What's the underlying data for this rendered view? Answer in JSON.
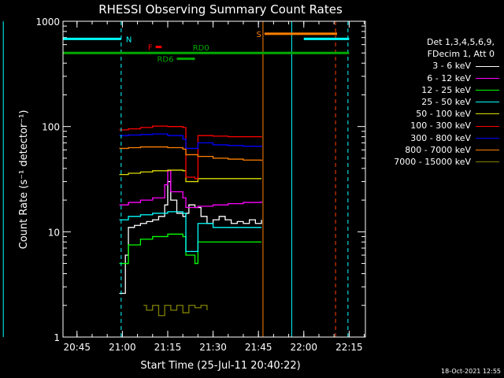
{
  "chart_data": {
    "type": "line",
    "title": "RHESSI Observing Summary Count Rates",
    "xlabel": "Start Time (25-Jul-11 20:40:22)",
    "ylabel": "Count Rate (s⁻¹ detector⁻¹)",
    "yscale": "log",
    "ylim": [
      1,
      1000
    ],
    "xlim_minutes": [
      20.67,
      20.63,
      22.33
    ],
    "x_ticks": [
      "20:45",
      "21:00",
      "21:15",
      "21:30",
      "21:45",
      "22:00",
      "22:15"
    ],
    "x_tick_minutes": [
      45,
      60,
      75,
      90,
      105,
      120,
      135
    ],
    "y_ticks": [
      "1",
      "10",
      "100",
      "1000"
    ],
    "legend_header": [
      "Det 1,3,4,5,6,9,",
      "FDecim 1, Att 0"
    ],
    "series": [
      {
        "name": "3 - 6 keV",
        "color": "#ffffff",
        "x": [
          59,
          60,
          61,
          62,
          64,
          66,
          68,
          70,
          72,
          74,
          75,
          76,
          78,
          80,
          81,
          82,
          84,
          86,
          88,
          90,
          92,
          94,
          96,
          98,
          100,
          102,
          104,
          106
        ],
        "y": [
          2.6,
          2.6,
          6,
          11,
          11.5,
          12,
          12.5,
          13,
          14,
          18,
          30,
          20,
          15,
          14,
          15,
          18,
          17,
          14,
          12,
          13,
          14,
          13,
          12,
          12.5,
          12,
          13,
          12,
          13
        ]
      },
      {
        "name": "6 - 12 keV",
        "color": "#ff00ff",
        "x": [
          59,
          62,
          66,
          70,
          74,
          75,
          76,
          80,
          81,
          85,
          90,
          95,
          100,
          106
        ],
        "y": [
          18,
          19,
          20,
          21,
          28,
          38,
          24,
          21,
          17,
          17.5,
          18,
          18.5,
          19,
          19.5
        ]
      },
      {
        "name": "12 - 25 keV",
        "color": "#00ff00",
        "x": [
          59,
          62,
          66,
          70,
          75,
          80,
          81,
          84,
          85,
          88,
          90,
          95,
          100,
          106
        ],
        "y": [
          5,
          7.5,
          8.5,
          9,
          9.5,
          9,
          6,
          5,
          8,
          8,
          8,
          8,
          8,
          8
        ]
      },
      {
        "name": "25 - 50 keV",
        "color": "#00ffff",
        "x": [
          59,
          62,
          66,
          70,
          75,
          80,
          81,
          84,
          85,
          90,
          95,
          100,
          106
        ],
        "y": [
          13,
          14,
          14.5,
          15,
          15.5,
          15,
          6.5,
          6.5,
          12,
          11,
          11,
          11,
          11
        ]
      },
      {
        "name": "50 - 100 keV",
        "color": "#dddd00",
        "x": [
          59,
          62,
          66,
          70,
          75,
          80,
          81,
          85,
          90,
          95,
          100,
          106
        ],
        "y": [
          35,
          36,
          37,
          38,
          38.5,
          38,
          30,
          32,
          32,
          32,
          32,
          32
        ]
      },
      {
        "name": "100 - 300 keV",
        "color": "#ff0000",
        "x": [
          59,
          62,
          66,
          70,
          75,
          80,
          81,
          84,
          85,
          90,
          95,
          100,
          106
        ],
        "y": [
          93,
          95,
          98,
          101,
          100,
          98,
          33,
          32,
          82,
          81,
          80,
          80,
          79
        ]
      },
      {
        "name": "300 - 800 keV",
        "color": "#0000ff",
        "x": [
          59,
          62,
          66,
          70,
          75,
          80,
          81,
          85,
          90,
          95,
          100,
          106
        ],
        "y": [
          82,
          83,
          84,
          85,
          82,
          76,
          62,
          70,
          67,
          66,
          65,
          64
        ]
      },
      {
        "name": "800 - 7000 keV",
        "color": "#ff8000",
        "x": [
          59,
          62,
          66,
          70,
          75,
          80,
          81,
          85,
          90,
          95,
          100,
          106
        ],
        "y": [
          62,
          63,
          64,
          64,
          63,
          61,
          54,
          52,
          50,
          49,
          48,
          47
        ]
      },
      {
        "name": "7000 - 15000 keV",
        "color": "#808000",
        "x": [
          67,
          68,
          70,
          72,
          74,
          76,
          78,
          80,
          82,
          84,
          86,
          88
        ],
        "y": [
          2,
          1.8,
          2,
          1.6,
          2,
          1.8,
          2,
          1.7,
          2,
          1.9,
          2,
          1.8
        ]
      }
    ],
    "annotations": [
      {
        "label": "N",
        "color": "#00ffff",
        "y": 680,
        "segments": [
          [
            20.63,
            59.6
          ],
          [
            120,
            135
          ]
        ]
      },
      {
        "label": "S",
        "color": "#ff8000",
        "y": 760,
        "segments": [
          [
            107,
            131
          ]
        ]
      },
      {
        "label": "F",
        "color": "#ff0000",
        "y": 570,
        "segments": [
          [
            71,
            73
          ]
        ]
      },
      {
        "label": "RD6",
        "color": "#00aa00",
        "y": 440,
        "segments": [
          [
            78,
            84
          ]
        ]
      },
      {
        "label": "RD0",
        "color": "#00aa00",
        "y": 500,
        "segments": [
          [
            20.63,
            135
          ]
        ]
      }
    ],
    "vertical_lines": [
      {
        "x": 20.63,
        "color": "#00ffff",
        "style": "solid"
      },
      {
        "x": 59.6,
        "color": "#00ffff",
        "style": "dashed"
      },
      {
        "x": 106.5,
        "color": "#ff8000",
        "style": "solid"
      },
      {
        "x": 116,
        "color": "#00ffff",
        "style": "solid"
      },
      {
        "x": 130.5,
        "color": "#ff4000",
        "style": "dashed"
      },
      {
        "x": 134.6,
        "color": "#00ffff",
        "style": "dashed"
      }
    ],
    "grid": false,
    "legend_position": "right"
  },
  "timestamp": "18-Oct-2021 12:55"
}
